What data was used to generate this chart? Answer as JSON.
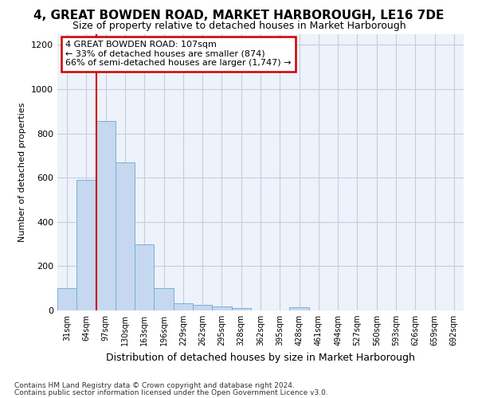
{
  "title1": "4, GREAT BOWDEN ROAD, MARKET HARBOROUGH, LE16 7DE",
  "title2": "Size of property relative to detached houses in Market Harborough",
  "xlabel": "Distribution of detached houses by size in Market Harborough",
  "ylabel": "Number of detached properties",
  "footnote1": "Contains HM Land Registry data © Crown copyright and database right 2024.",
  "footnote2": "Contains public sector information licensed under the Open Government Licence v3.0.",
  "categories": [
    "31sqm",
    "64sqm",
    "97sqm",
    "130sqm",
    "163sqm",
    "196sqm",
    "229sqm",
    "262sqm",
    "295sqm",
    "328sqm",
    "362sqm",
    "395sqm",
    "428sqm",
    "461sqm",
    "494sqm",
    "527sqm",
    "560sqm",
    "593sqm",
    "626sqm",
    "659sqm",
    "692sqm"
  ],
  "bar_values": [
    100,
    590,
    855,
    670,
    300,
    100,
    32,
    25,
    18,
    10,
    0,
    0,
    15,
    0,
    0,
    0,
    0,
    0,
    0,
    0,
    0
  ],
  "bar_color": "#c5d8f0",
  "bar_edge_color": "#7aafd4",
  "ylim": [
    0,
    1250
  ],
  "yticks": [
    0,
    200,
    400,
    600,
    800,
    1000,
    1200
  ],
  "property_line_x": 1.5,
  "property_line_color": "#cc0000",
  "annotation_text": "4 GREAT BOWDEN ROAD: 107sqm\n← 33% of detached houses are smaller (874)\n66% of semi-detached houses are larger (1,747) →",
  "annotation_box_color": "white",
  "annotation_box_edge_color": "#cc0000",
  "bg_color": "#eef2fa",
  "grid_color": "#c5cde0",
  "title1_fontsize": 11,
  "title2_fontsize": 9,
  "xlabel_fontsize": 9,
  "ylabel_fontsize": 8,
  "footnote_fontsize": 6.5
}
